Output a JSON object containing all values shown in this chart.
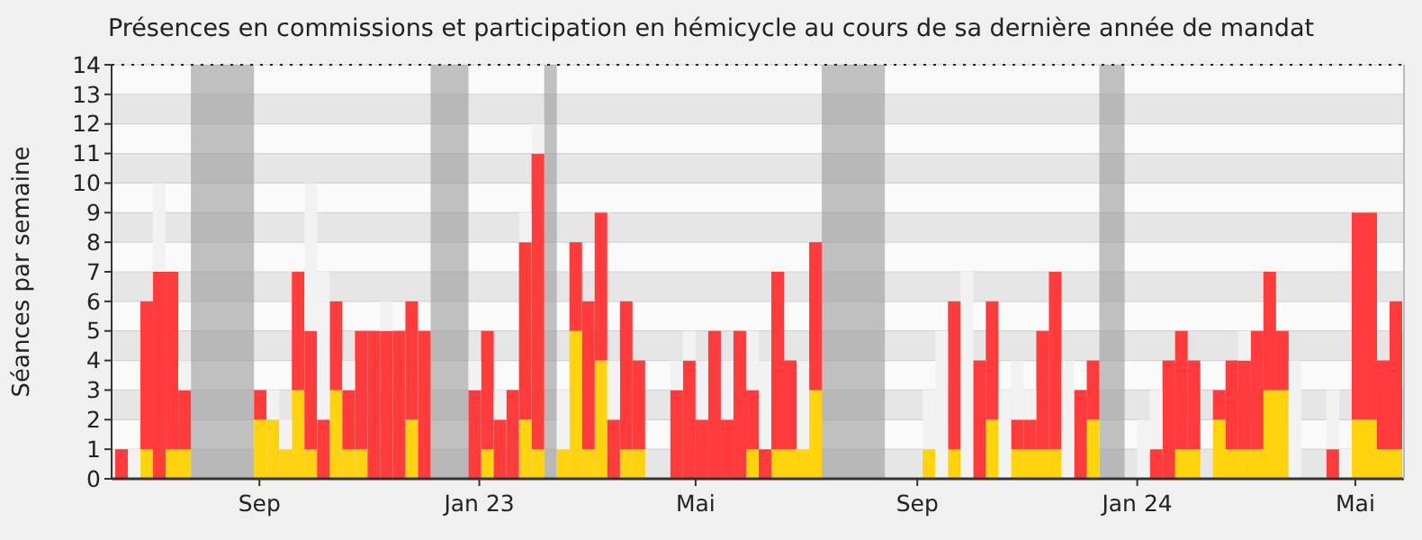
{
  "chart_data": {
    "type": "bar",
    "title": "Présences en commissions et participation en hémicycle au cours de sa dernière année de mandat",
    "ylabel": "Séances par semaine",
    "x": [
      "2022-06-13",
      "2022-06-20",
      "2022-06-27",
      "2022-07-04",
      "2022-07-11",
      "2022-07-18",
      "2022-08-29",
      "2022-09-05",
      "2022-09-12",
      "2022-09-19",
      "2022-09-26",
      "2022-10-03",
      "2022-10-10",
      "2022-10-17",
      "2022-10-24",
      "2022-10-31",
      "2022-11-07",
      "2022-11-14",
      "2022-11-21",
      "2022-11-28",
      "2022-12-26",
      "2023-01-02",
      "2023-01-09",
      "2023-01-16",
      "2023-01-23",
      "2023-01-30",
      "2023-02-13",
      "2023-02-20",
      "2023-02-27",
      "2023-03-06",
      "2023-03-13",
      "2023-03-20",
      "2023-03-27",
      "2023-04-17",
      "2023-04-24",
      "2023-05-01",
      "2023-05-08",
      "2023-05-15",
      "2023-05-22",
      "2023-05-29",
      "2023-06-05",
      "2023-06-12",
      "2023-06-19",
      "2023-06-26",
      "2023-07-03",
      "2023-09-04",
      "2023-09-11",
      "2023-09-18",
      "2023-09-25",
      "2023-10-02",
      "2023-10-09",
      "2023-10-16",
      "2023-10-23",
      "2023-10-30",
      "2023-11-06",
      "2023-11-13",
      "2023-11-20",
      "2023-11-27",
      "2023-12-04",
      "2024-01-01",
      "2024-01-08",
      "2024-01-15",
      "2024-01-22",
      "2024-01-29",
      "2024-02-12",
      "2024-02-19",
      "2024-02-26",
      "2024-03-04",
      "2024-03-11",
      "2024-03-18",
      "2024-03-25",
      "2024-04-15",
      "2024-04-22",
      "2024-04-29",
      "2024-05-06",
      "2024-05-13",
      "2024-05-20"
    ],
    "series": [
      {
        "color": "#ffd40f",
        "values": [
          null,
          null,
          1,
          null,
          1,
          1,
          2,
          2,
          1,
          3,
          1,
          null,
          3,
          1,
          1,
          null,
          null,
          null,
          2,
          null,
          null,
          1,
          null,
          null,
          2,
          1,
          1,
          5,
          1,
          4,
          null,
          1,
          1,
          null,
          null,
          null,
          null,
          null,
          null,
          1,
          null,
          1,
          1,
          1,
          3,
          1,
          null,
          1,
          null,
          null,
          2,
          null,
          1,
          1,
          1,
          1,
          null,
          null,
          2,
          null,
          null,
          null,
          1,
          1,
          2,
          1,
          1,
          1,
          3,
          3,
          null,
          null,
          null,
          2,
          2,
          1,
          1
        ]
      },
      {
        "color": "#ff3b3b",
        "values": [
          1,
          null,
          5,
          7,
          6,
          2,
          1,
          null,
          null,
          4,
          4,
          2,
          3,
          2,
          4,
          5,
          5,
          5,
          4,
          5,
          3,
          4,
          2,
          3,
          6,
          10,
          null,
          3,
          5,
          5,
          2,
          5,
          3,
          3,
          4,
          2,
          5,
          2,
          5,
          2,
          1,
          6,
          3,
          null,
          5,
          null,
          null,
          5,
          null,
          4,
          4,
          null,
          1,
          1,
          4,
          6,
          null,
          3,
          2,
          null,
          1,
          4,
          4,
          3,
          1,
          3,
          3,
          4,
          4,
          2,
          null,
          1,
          null,
          7,
          7,
          3,
          5
        ]
      },
      {
        "color": "#f2f2f2",
        "values": [
          null,
          1,
          null,
          3,
          null,
          1,
          null,
          1,
          1,
          null,
          5,
          5,
          null,
          1,
          null,
          null,
          1,
          null,
          null,
          null,
          1,
          null,
          1,
          null,
          1,
          1,
          2,
          null,
          null,
          null,
          2,
          null,
          null,
          1,
          1,
          2,
          null,
          2,
          null,
          2,
          3,
          null,
          null,
          3,
          null,
          2,
          5,
          null,
          7,
          null,
          null,
          3,
          2,
          1,
          null,
          null,
          4,
          null,
          null,
          2,
          2,
          null,
          null,
          null,
          null,
          null,
          1,
          null,
          null,
          null,
          4,
          2,
          1,
          null,
          null,
          null,
          null
        ]
      }
    ],
    "stacked": true,
    "xlim": [
      "2022-06-11",
      "2024-05-28"
    ],
    "xticks": [
      {
        "value": "2022-09-01",
        "label": "Sep"
      },
      {
        "value": "2023-01-01",
        "label": "Jan 23"
      },
      {
        "value": "2023-05-01",
        "label": "Mai"
      },
      {
        "value": "2023-09-01",
        "label": "Sep"
      },
      {
        "value": "2024-01-01",
        "label": "Jan 24"
      },
      {
        "value": "2024-05-01",
        "label": "Mai"
      }
    ],
    "ylim": [
      0,
      14
    ],
    "yticks": [
      0,
      1,
      2,
      3,
      4,
      5,
      6,
      7,
      8,
      9,
      10,
      11,
      12,
      13,
      14
    ],
    "grid": "y",
    "bands": [
      {
        "axis": "x",
        "from": "2022-07-25",
        "to": "2022-08-29",
        "color": "#999999"
      },
      {
        "axis": "x",
        "from": "2022-12-05",
        "to": "2022-12-26",
        "color": "#999999"
      },
      {
        "axis": "x",
        "from": "2023-02-06",
        "to": "2023-02-13",
        "color": "#999999"
      },
      {
        "axis": "x",
        "from": "2023-07-10",
        "to": "2023-08-14",
        "color": "#999999"
      },
      {
        "axis": "x",
        "from": "2023-12-11",
        "to": "2023-12-25",
        "color": "#999999"
      }
    ]
  }
}
